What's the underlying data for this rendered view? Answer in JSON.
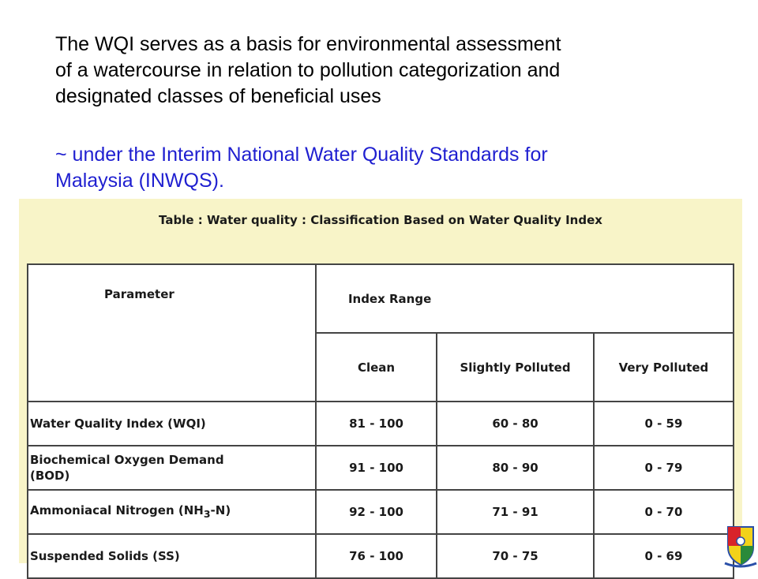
{
  "intro": {
    "line1": "The WQI serves as a basis for environmental assessment",
    "line2": "of a watercourse in relation to pollution categorization and",
    "line3": "designated classes of beneficial uses"
  },
  "reference": {
    "line1": "~ under the Interim National Water Quality Standards for",
    "line2": "Malaysia (INWQS)."
  },
  "table": {
    "caption": "Table : Water quality : Classification Based on Water Quality Index",
    "header": {
      "parameter": "Parameter",
      "index_range": "Index Range",
      "clean": "Clean",
      "slightly_polluted": "Slightly Polluted",
      "very_polluted": "Very Polluted"
    },
    "rows": [
      {
        "parameter": "Water Quality Index (WQI)",
        "clean": "81 - 100",
        "slightly_polluted": "60 - 80",
        "very_polluted": "0 - 59"
      },
      {
        "parameter_line1": "Biochemical Oxygen Demand",
        "parameter_line2": "(BOD)",
        "clean": "91 - 100",
        "slightly_polluted": "80 - 90",
        "very_polluted": "0 - 79"
      },
      {
        "parameter_prefix": "Ammoniacal Nitrogen (NH",
        "parameter_sub": "3",
        "parameter_suffix": "-N)",
        "clean": "92 - 100",
        "slightly_polluted": "71 - 91",
        "very_polluted": "0 - 70"
      },
      {
        "parameter": "Suspended Solids (SS)",
        "clean": "76 - 100",
        "slightly_polluted": "70 - 75",
        "very_polluted": "0 - 69"
      }
    ]
  },
  "colors": {
    "intro_text": "#000000",
    "reference_text": "#1f1fd0",
    "table_panel_bg": "#f8f4c8",
    "table_border": "#444444"
  },
  "icons": {
    "crest": "university-crest-icon"
  }
}
